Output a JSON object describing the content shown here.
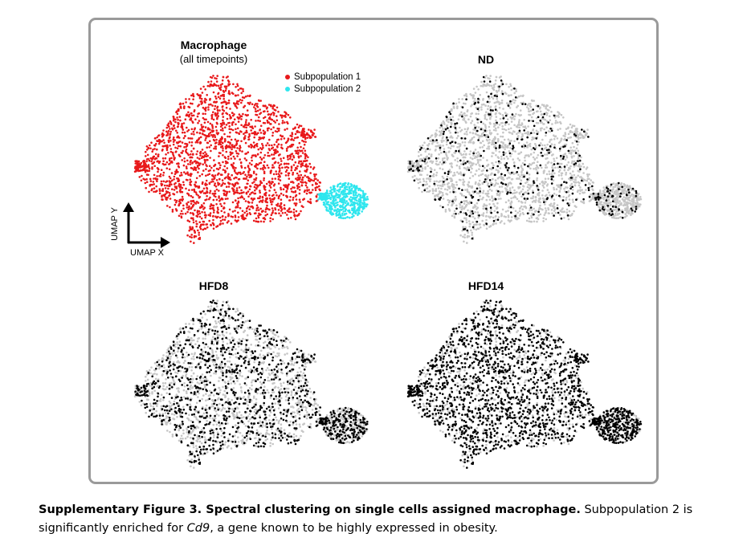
{
  "figure": {
    "panels": [
      {
        "id": "all",
        "title": "Macrophage",
        "subtitle": "(all timepoints)",
        "mode": "cluster"
      },
      {
        "id": "nd",
        "title": "ND",
        "mode": "highlight",
        "density": 0.13
      },
      {
        "id": "hfd8",
        "title": "HFD8",
        "mode": "highlight",
        "density": 0.42
      },
      {
        "id": "hfd14",
        "title": "HFD14",
        "mode": "highlight",
        "density": 0.68
      }
    ],
    "legend": [
      {
        "label": "Subpopulation 1",
        "color": "#e8191b"
      },
      {
        "label": "Subpopulation 2",
        "color": "#2fe6ee"
      }
    ],
    "axes": {
      "x_label": "UMAP X",
      "y_label": "UMAP Y"
    },
    "colors": {
      "highlight": "#000000",
      "background_cells": "#c6c6c6",
      "frame": "#9a9a9a"
    }
  },
  "caption": {
    "bold_text": "Supplementary Figure 3. Spectral clustering on single cells assigned macrophage.",
    "text_1": " Subpopulation 2 is significantly enriched for ",
    "gene": "Cd9",
    "text_2": ", a gene known to be highly expressed in obesity."
  }
}
